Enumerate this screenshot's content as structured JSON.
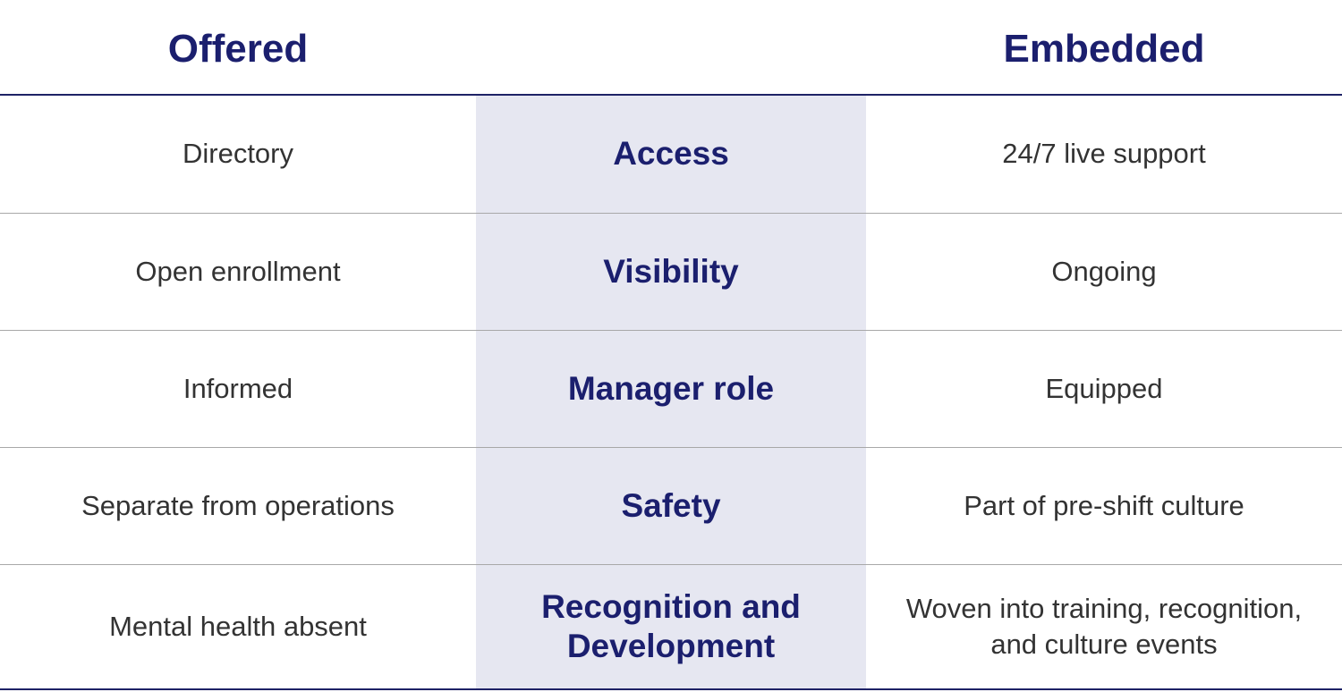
{
  "header": {
    "columns": [
      "Offered",
      "Embedded"
    ]
  },
  "table": {
    "rows": [
      [
        "Directory",
        "Access",
        "24/7 live support"
      ],
      [
        "Open enrollment",
        "Visibility",
        "Ongoing"
      ],
      [
        "Informed",
        "Manager role",
        "Equipped"
      ],
      [
        "Separate from operations",
        "Safety",
        "Part of pre-shift culture"
      ],
      [
        "Mental health absent",
        "Recognition and Development",
        "Woven into training, recognition, and culture events"
      ]
    ]
  }
}
